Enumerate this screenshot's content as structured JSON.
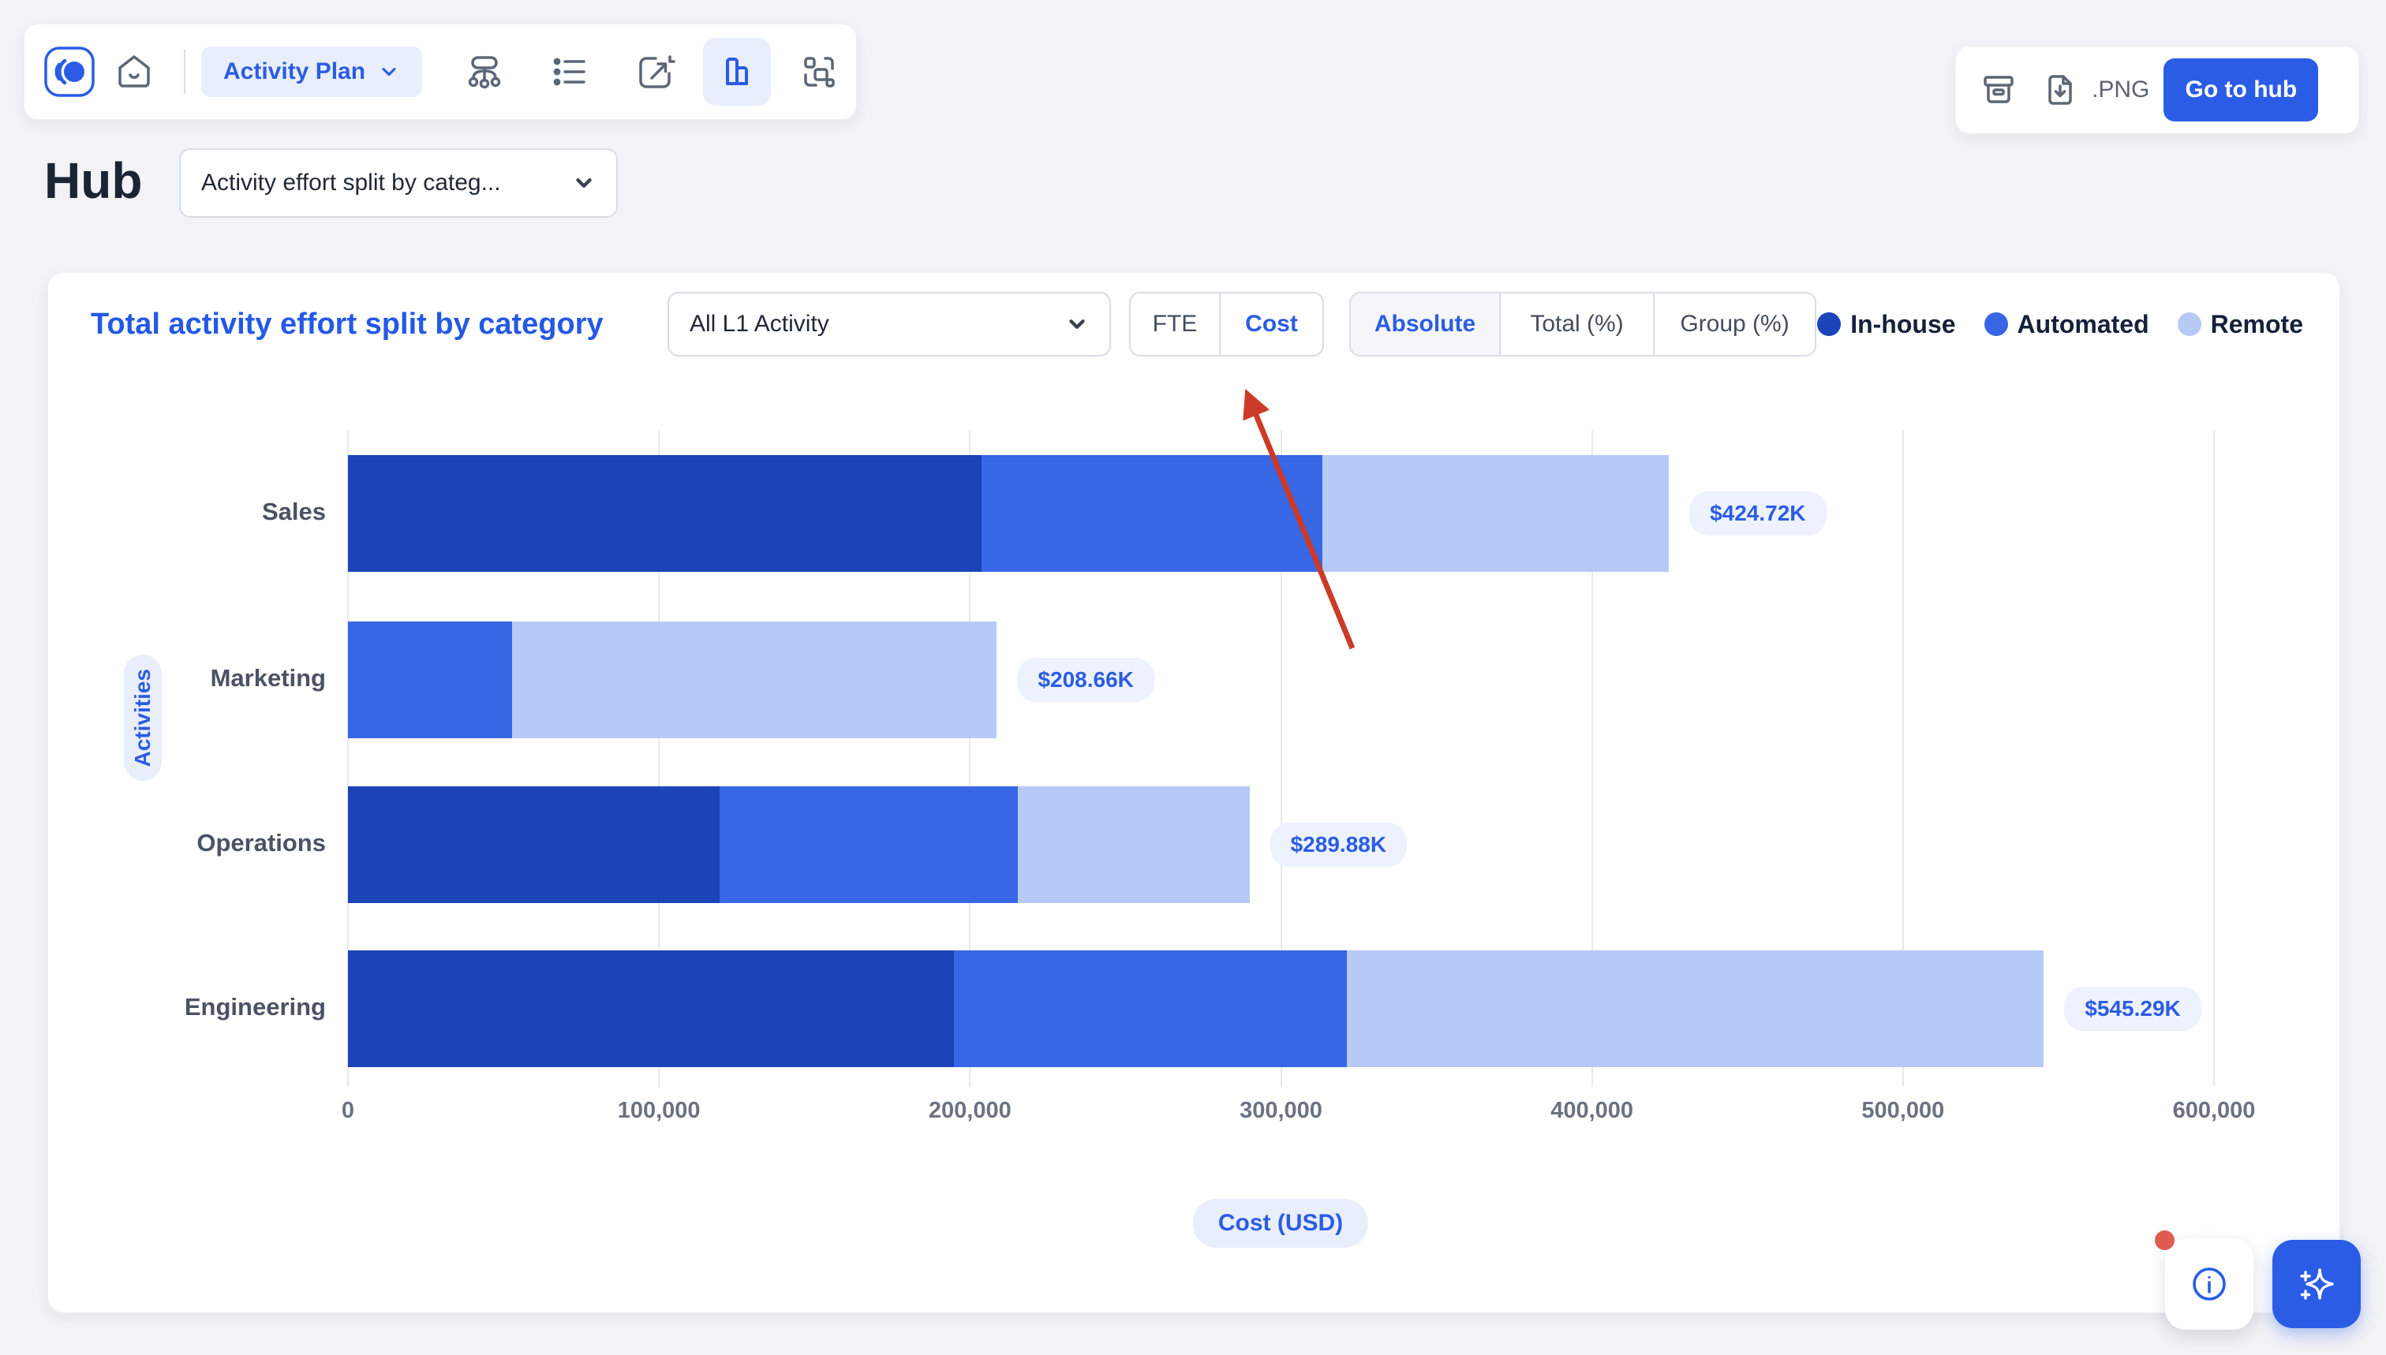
{
  "colors": {
    "accent_blue": "#2B5CE5",
    "inhouse_blue": "#1A44B7",
    "automated_blue": "#3767E5",
    "remote_blue": "#B7CAF6",
    "annotation_red": "#CD3A28",
    "notification_red": "#E05B50"
  },
  "header": {
    "nav_icons": [
      "logo",
      "home-icon",
      "sitemap-icon",
      "list-icon",
      "edit-chart-icon",
      "bar-chart-icon",
      "scan-icon"
    ],
    "active_nav_icon": "bar-chart-icon",
    "plan_selector": {
      "label": "Activity Plan"
    },
    "actions": {
      "icons": [
        "archive-icon",
        "download-icon"
      ],
      "export_format": ".PNG",
      "go_to_hub": "Go to hub"
    }
  },
  "page": {
    "title": "Hub",
    "view_selector": {
      "value": "Activity effort split by categ..."
    }
  },
  "chart_card": {
    "title": "Total activity effort split by category",
    "activity_filter": {
      "value": "All L1 Activity"
    },
    "unit_toggle": {
      "options": [
        "FTE",
        "Cost"
      ],
      "selected": "Cost"
    },
    "mode_toggle": {
      "options": [
        "Absolute",
        "Total (%)",
        "Group (%)"
      ],
      "selected": "Absolute"
    },
    "y_axis_label": "Activities",
    "x_axis_title": "Cost (USD)"
  },
  "chart_data": {
    "type": "bar",
    "orientation": "horizontal",
    "stacked": true,
    "title": "Total activity effort split by category",
    "xlabel": "Cost (USD)",
    "ylabel": "Activities",
    "categories": [
      "Sales",
      "Marketing",
      "Operations",
      "Engineering"
    ],
    "series": [
      {
        "name": "In-house",
        "color": "#1A44B7",
        "values": [
          203600,
          0,
          119500,
          194800
        ]
      },
      {
        "name": "Automated",
        "color": "#3767E5",
        "values": [
          109700,
          52660,
          95900,
          126400
        ]
      },
      {
        "name": "Remote",
        "color": "#B7CAF6",
        "values": [
          111420,
          156000,
          74480,
          224090
        ]
      }
    ],
    "totals": [
      424720,
      208660,
      289880,
      545290
    ],
    "total_labels": [
      "$424.72K",
      "$208.66K",
      "$289.88K",
      "$545.29K"
    ],
    "x_ticks": [
      "0",
      "100,000",
      "200,000",
      "300,000",
      "400,000",
      "500,000",
      "600,000"
    ],
    "xlim": [
      0,
      600000
    ],
    "grid": "vertical",
    "legend_position": "top-right"
  },
  "annotation": {
    "type": "arrow",
    "color": "#CD3A28",
    "points_to": "Cost toggle"
  }
}
